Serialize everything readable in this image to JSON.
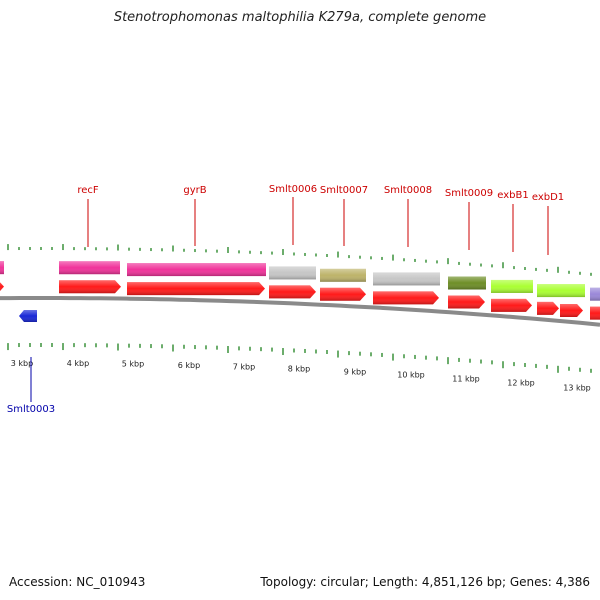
{
  "title": "Stenotrophomonas maltophilia K279a, complete genome",
  "footer": {
    "accession": "Accession: NC_010943",
    "summary": "Topology: circular; Length: 4,851,126 bp; Genes: 4,386"
  },
  "colors": {
    "label_red": "#cc0000",
    "label_blue": "#0000aa",
    "tick_green": "#2d8a2d",
    "backbone": "#8a8a8a",
    "cds_red": "#ff1a1a",
    "pink": "#f0339a",
    "gray": "#c6c6c6",
    "khaki": "#bdb36a",
    "olive": "#6e8e27",
    "lime": "#aaff33",
    "purple": "#9a88d8",
    "blue": "#1a28d6"
  },
  "scale": {
    "unit": "kbp",
    "labels": [
      "3 kbp",
      "4 kbp",
      "5 kbp",
      "6 kbp",
      "7 kbp",
      "8 kbp",
      "9 kbp",
      "10 kbp",
      "11 kbp",
      "12 kbp",
      "13 kbp"
    ]
  },
  "genes": [
    {
      "name": "recF",
      "strand": "+",
      "color_key": "pink"
    },
    {
      "name": "gyrB",
      "strand": "+",
      "color_key": "pink"
    },
    {
      "name": "Smlt0006",
      "strand": "+",
      "color_key": "gray"
    },
    {
      "name": "Smlt0007",
      "strand": "+",
      "color_key": "khaki"
    },
    {
      "name": "Smlt0008",
      "strand": "+",
      "color_key": "gray"
    },
    {
      "name": "Smlt0009",
      "strand": "+",
      "color_key": "olive"
    },
    {
      "name": "exbB1",
      "strand": "+",
      "color_key": "lime"
    },
    {
      "name": "exbD1",
      "strand": "+",
      "color_key": "lime"
    },
    {
      "name": "Smlt0003",
      "strand": "-",
      "color_key": "blue"
    }
  ]
}
